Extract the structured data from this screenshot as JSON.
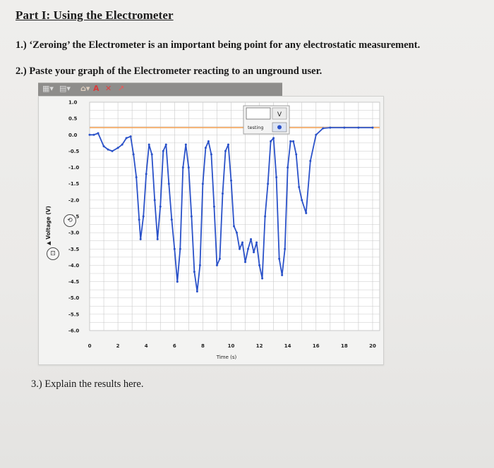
{
  "doc": {
    "title": "Part I: Using the Electrometer",
    "q1": "1.) ‘Zeroing’ the Electrometer is an important being point for any electrostatic measurement.",
    "q2": "2.) Paste your graph of the Electrometer reacting to an unground user.",
    "q3": "3.) Explain the results here."
  },
  "toolbar": {
    "icons": [
      "chart-type-icon",
      "dropdown-icon",
      "format-icon",
      "text-icon",
      "delete-icon",
      "arrow-icon"
    ],
    "text_glyph": "A",
    "delete_glyph": "✕"
  },
  "legend": {
    "label": "testing",
    "unit_button": "V"
  },
  "colors": {
    "series": "#2b52c9",
    "reference": "#f3a45a",
    "grid": "#c9c9c9"
  },
  "chart_data": {
    "type": "line",
    "xlabel": "Time (s)",
    "ylabel": "Voltage (V)",
    "xlim": [
      0,
      20.5
    ],
    "ylim": [
      -6.0,
      1.0
    ],
    "x_ticks": [
      "0",
      "2",
      "4",
      "6",
      "8",
      "10",
      "12",
      "14",
      "16",
      "18",
      "20"
    ],
    "y_ticks": [
      "1.0",
      "0.5",
      "0.0",
      "-0.5",
      "-1.0",
      "-1.5",
      "-2.0",
      "-2.5",
      "-3.0",
      "-3.5",
      "-4.0",
      "-4.5",
      "-5.0",
      "-5.5",
      "-6.0"
    ],
    "grid": true,
    "reference_line": {
      "x": [
        0,
        20.5
      ],
      "y": [
        0.22,
        0.22
      ]
    },
    "series": [
      {
        "name": "testing",
        "x": [
          0.0,
          0.3,
          0.6,
          1.0,
          1.3,
          1.6,
          2.0,
          2.3,
          2.6,
          2.9,
          3.1,
          3.3,
          3.5,
          3.6,
          3.8,
          4.0,
          4.2,
          4.4,
          4.6,
          4.8,
          5.0,
          5.2,
          5.4,
          5.6,
          5.8,
          6.0,
          6.2,
          6.4,
          6.6,
          6.8,
          7.0,
          7.2,
          7.4,
          7.6,
          7.8,
          8.0,
          8.2,
          8.4,
          8.6,
          8.8,
          9.0,
          9.2,
          9.4,
          9.6,
          9.8,
          10.0,
          10.2,
          10.4,
          10.6,
          10.8,
          11.0,
          11.2,
          11.4,
          11.6,
          11.8,
          12.0,
          12.2,
          12.4,
          12.6,
          12.8,
          13.0,
          13.2,
          13.4,
          13.6,
          13.8,
          14.0,
          14.2,
          14.4,
          14.6,
          14.8,
          15.0,
          15.3,
          15.6,
          16.0,
          16.5,
          17.0,
          18.0,
          19.0,
          20.0
        ],
        "y": [
          0.0,
          0.0,
          0.05,
          -0.35,
          -0.45,
          -0.5,
          -0.4,
          -0.3,
          -0.1,
          -0.05,
          -0.6,
          -1.3,
          -2.6,
          -3.2,
          -2.5,
          -1.2,
          -0.3,
          -0.6,
          -2.0,
          -3.2,
          -2.2,
          -0.5,
          -0.3,
          -1.5,
          -2.6,
          -3.5,
          -4.5,
          -3.5,
          -1.0,
          -0.3,
          -1.0,
          -2.5,
          -4.2,
          -4.8,
          -4.0,
          -1.5,
          -0.4,
          -0.2,
          -0.6,
          -2.2,
          -4.0,
          -3.8,
          -1.8,
          -0.5,
          -0.3,
          -1.4,
          -2.8,
          -3.0,
          -3.5,
          -3.3,
          -3.9,
          -3.5,
          -3.2,
          -3.6,
          -3.3,
          -4.0,
          -4.4,
          -2.5,
          -1.5,
          -0.2,
          -0.1,
          -1.3,
          -3.8,
          -4.3,
          -3.5,
          -1.0,
          -0.2,
          -0.2,
          -0.6,
          -1.6,
          -2.0,
          -2.4,
          -0.8,
          0.0,
          0.2,
          0.22,
          0.22,
          0.22,
          0.22
        ]
      }
    ]
  }
}
